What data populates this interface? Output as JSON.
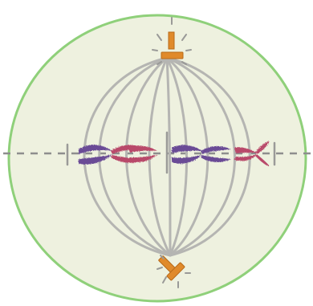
{
  "diagram": {
    "cell_membrane_color": "#8fd07a",
    "cytoplasm_color": "#eef1df",
    "spindle_fiber_color": "#b5b5b2",
    "equator_line_color": "#8e8e8e",
    "centrosome_color": "#e08a2b",
    "centrosome_outline": "#b86a1a",
    "chromatid_colors": [
      "#6b4c96",
      "#b94a6a"
    ],
    "chromosome_count": 4,
    "spindle_fiber_count": 9,
    "icons": [
      "centrosome-icon",
      "chromosome-icon"
    ]
  }
}
